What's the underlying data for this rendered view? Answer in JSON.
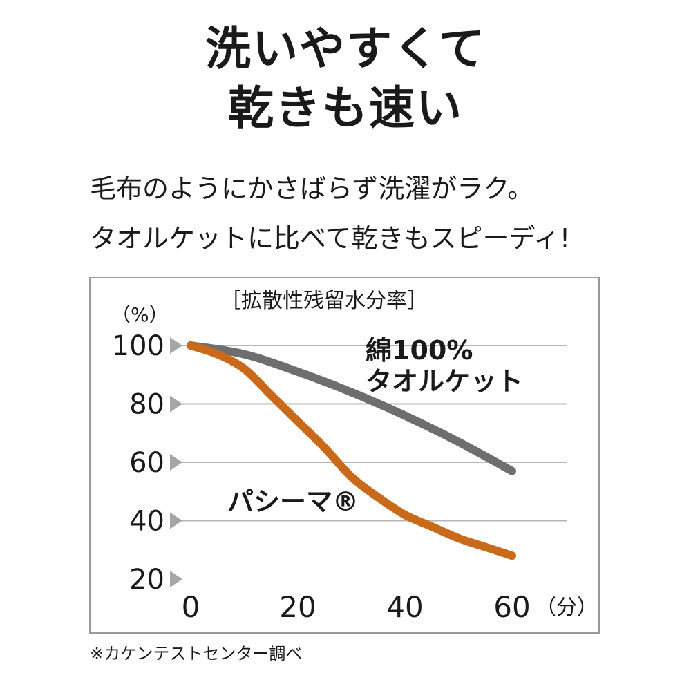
{
  "headline": {
    "line1": "洗いやすくて",
    "line2": "乾きも速い"
  },
  "subcopy": {
    "line1": "毛布のようにかさばらず洗濯がラク。",
    "line2": "タオルケットに比べて乾きもスピーディ!"
  },
  "chart_data": {
    "type": "line",
    "title": "［拡散性残留水分率］",
    "ylabel": "（%）",
    "xunit": "（分）",
    "x_ticks": [
      0,
      20,
      40,
      60
    ],
    "y_ticks": [
      20,
      40,
      60,
      80,
      100
    ],
    "xlim": [
      0,
      60
    ],
    "ylim": [
      20,
      100
    ],
    "grid": true,
    "series": [
      {
        "name": "綿100%\nタオルケット",
        "color": "#6e6e6e",
        "x": [
          0,
          10,
          20,
          30,
          40,
          50,
          60
        ],
        "y": [
          100,
          97,
          91,
          84,
          76,
          67,
          57
        ]
      },
      {
        "name": "パシーマ®",
        "color": "#c96a1a",
        "x": [
          0,
          5,
          10,
          15,
          20,
          25,
          30,
          35,
          40,
          45,
          50,
          55,
          60
        ],
        "y": [
          100,
          97,
          92,
          83,
          74,
          65,
          55,
          48,
          42,
          38,
          34,
          31,
          28
        ]
      }
    ]
  },
  "footnote": "※カケンテストセンター調べ"
}
